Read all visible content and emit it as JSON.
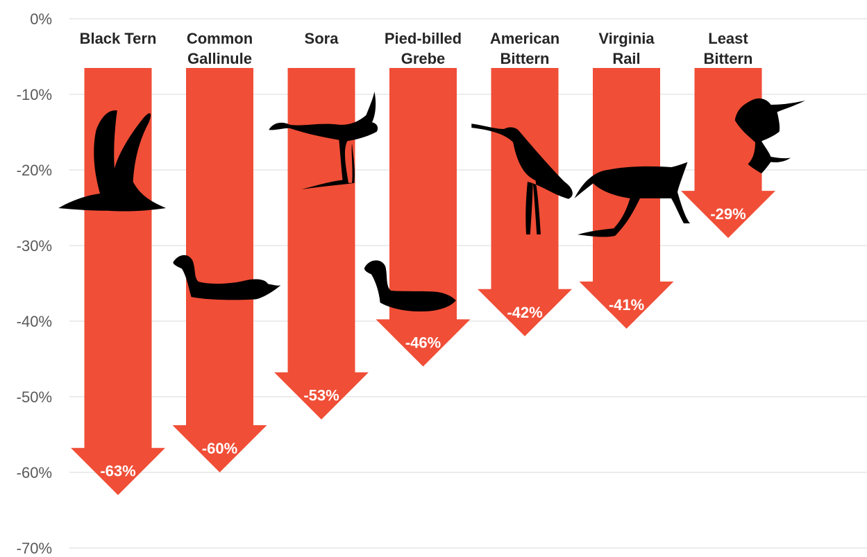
{
  "chart_data": {
    "type": "bar",
    "title": "",
    "xlabel": "",
    "ylabel": "",
    "ylim": [
      -70,
      0
    ],
    "yticks": [
      "0%",
      "-10%",
      "-20%",
      "-30%",
      "-40%",
      "-50%",
      "-60%",
      "-70%"
    ],
    "grid": true,
    "legend": "none",
    "bar_color": "#F04E37",
    "silhouette_color": "#000000",
    "categories": [
      [
        "Black Tern"
      ],
      [
        "Common",
        "Gallinule"
      ],
      [
        "Sora"
      ],
      [
        "Pied-billed",
        "Grebe"
      ],
      [
        "American",
        "Bittern"
      ],
      [
        "Virginia",
        "Rail"
      ],
      [
        "Least",
        "Bittern"
      ]
    ],
    "values": [
      -63,
      -60,
      -53,
      -46,
      -42,
      -41,
      -29
    ],
    "data_labels": [
      "-63%",
      "-60%",
      "-53%",
      "-46%",
      "-42%",
      "-41%",
      "-29%"
    ],
    "icons": [
      "tern-flying-icon",
      "gallinule-swimming-icon",
      "sora-walking-icon",
      "grebe-swimming-icon",
      "bittern-standing-icon",
      "rail-walking-icon",
      "least-bittern-perched-icon"
    ]
  }
}
